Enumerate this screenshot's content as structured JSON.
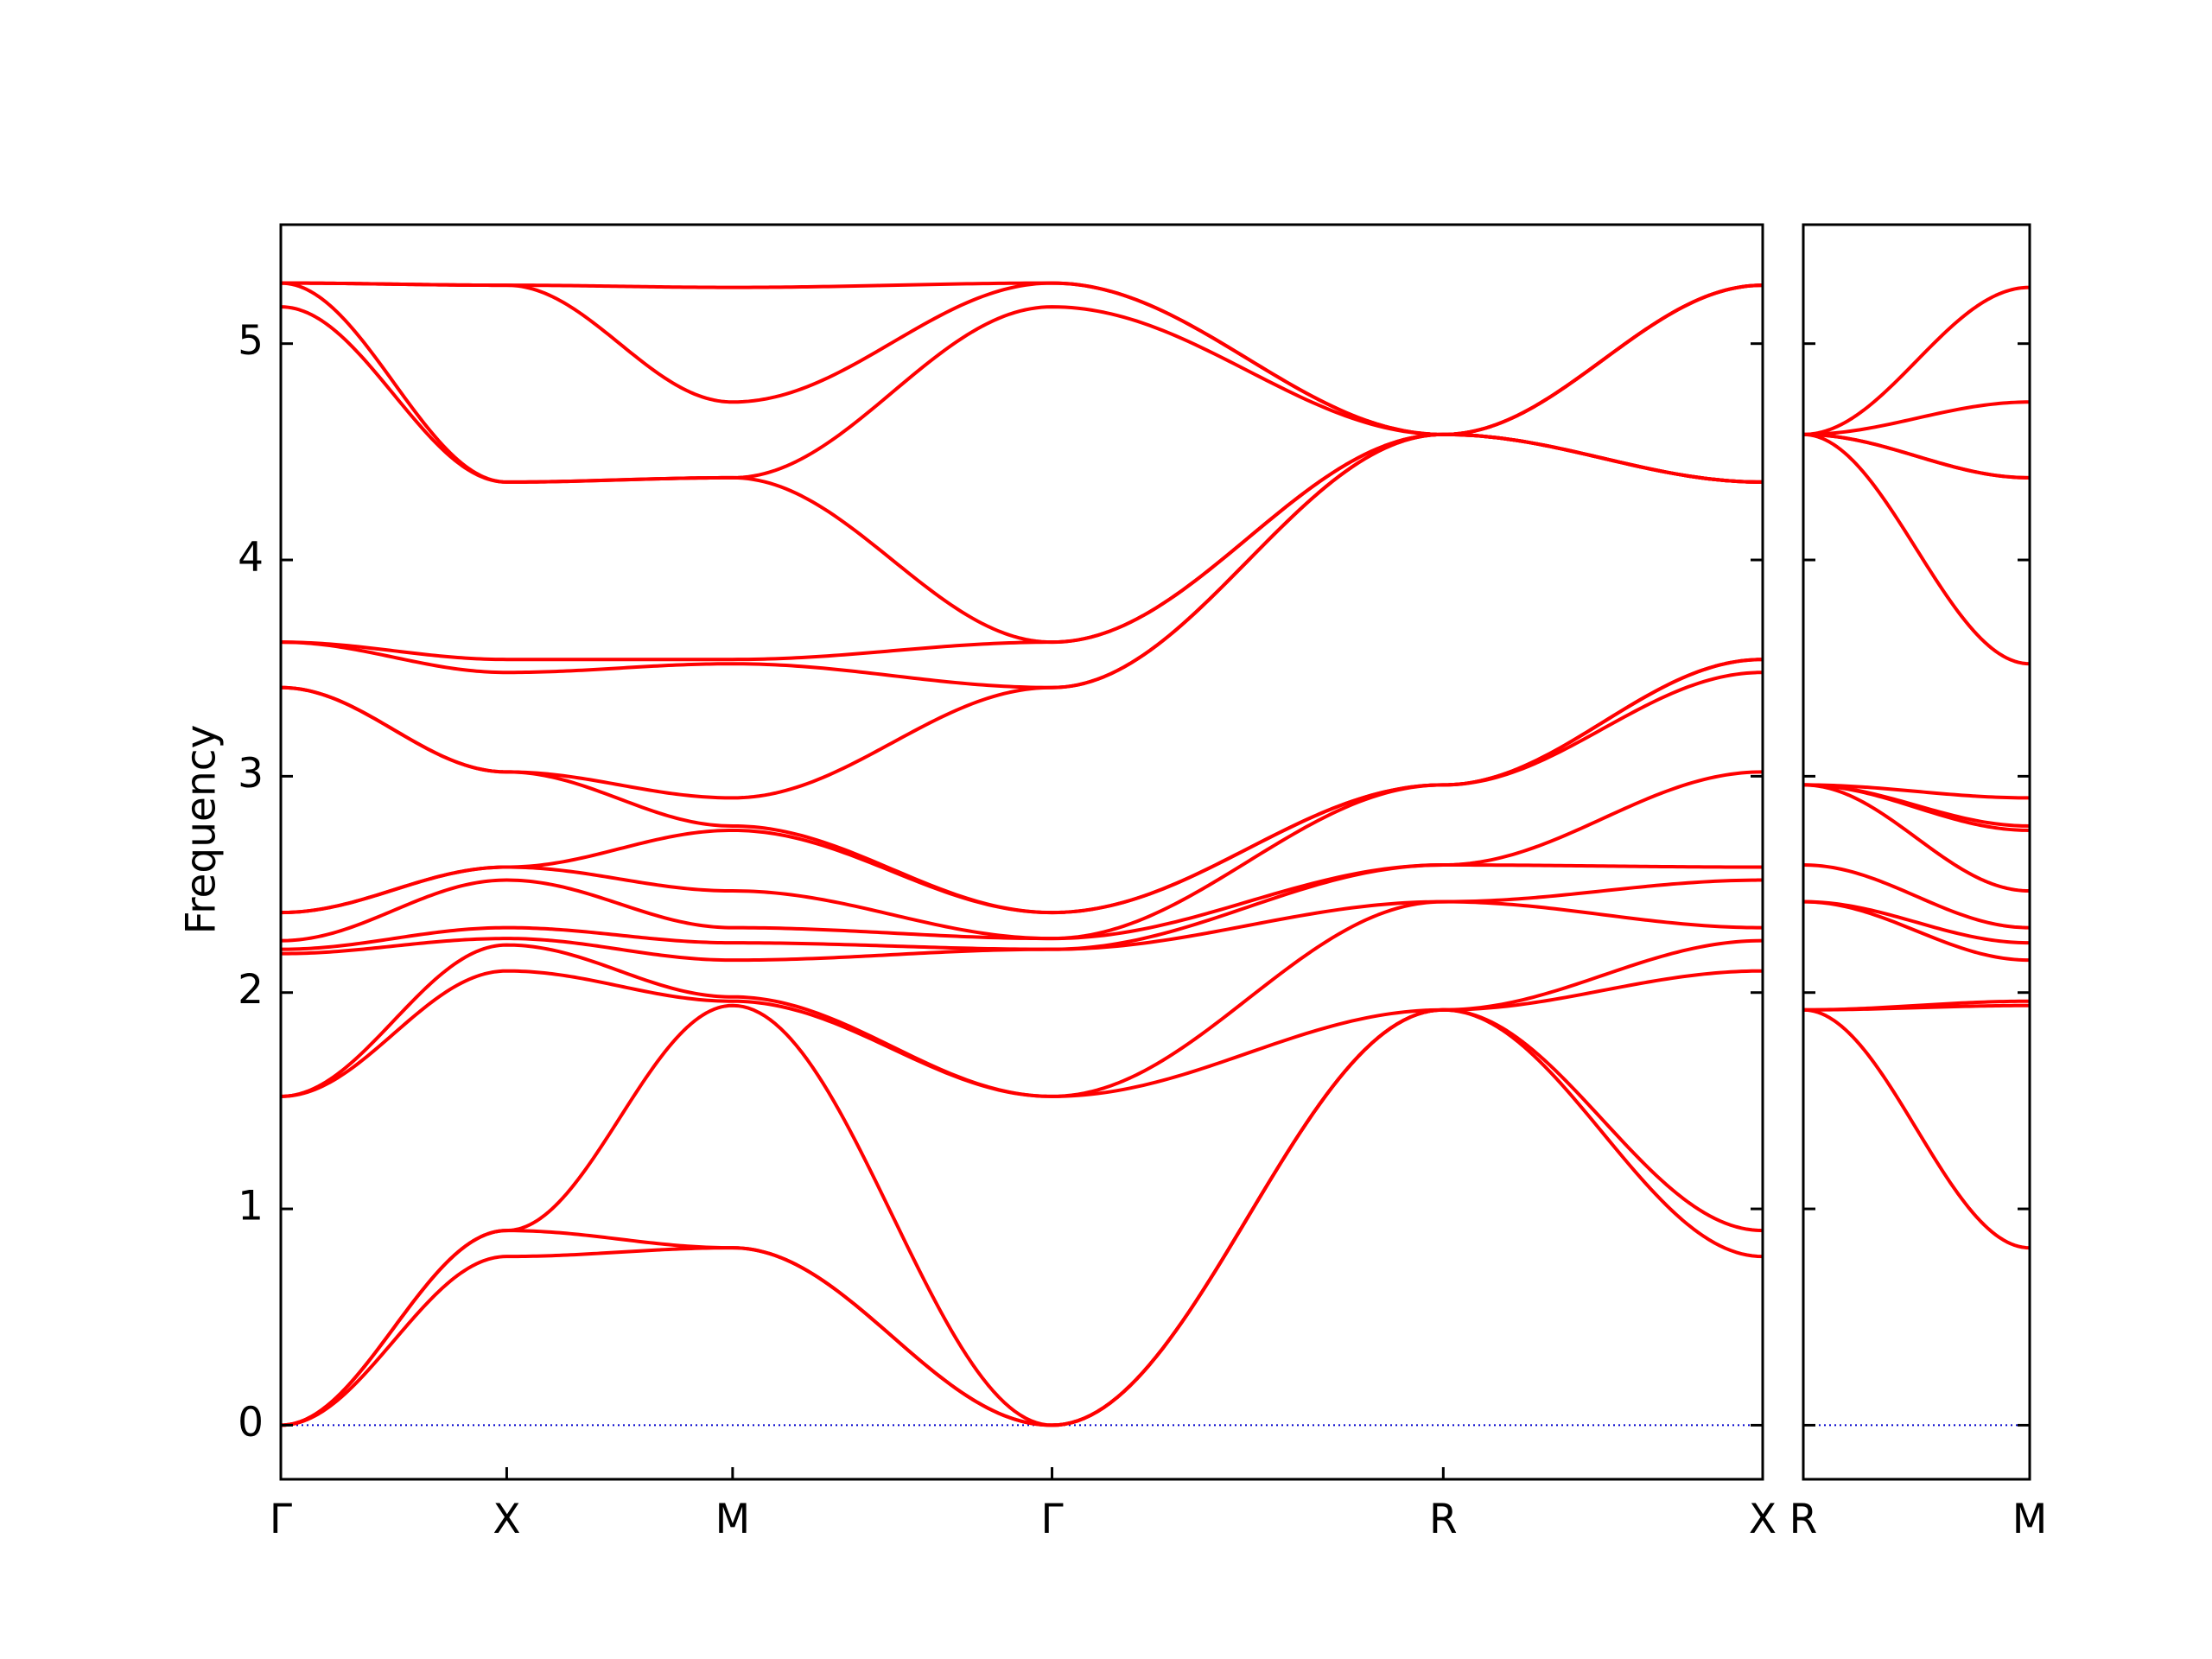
{
  "chart_data": {
    "type": "line",
    "ylabel": "Frequency",
    "ylim": [
      -0.25,
      5.55
    ],
    "y_ticks": [
      0,
      1,
      2,
      3,
      4,
      5
    ],
    "line_color": "#ff0000",
    "zero_line_color": "#0000cc",
    "panels": [
      {
        "segments": [
          {
            "from": "Γ",
            "to": "X",
            "length": 1.0
          },
          {
            "from": "X",
            "to": "M",
            "length": 1.0
          },
          {
            "from": "M",
            "to": "Γ",
            "length": 1.414
          },
          {
            "from": "Γ",
            "to": "R",
            "length": 1.732
          },
          {
            "from": "R",
            "to": "X",
            "length": 1.414
          }
        ],
        "x_tick_labels": [
          "Γ",
          "X",
          "M",
          "Γ",
          "R",
          "X"
        ],
        "bands": [
          [
            0.0,
            0.78,
            0.82,
            0.0,
            1.92,
            0.78
          ],
          [
            0.0,
            0.9,
            0.82,
            0.0,
            1.92,
            0.9
          ],
          [
            0.0,
            0.9,
            1.94,
            0.0,
            1.92,
            2.1
          ],
          [
            1.52,
            2.1,
            1.96,
            1.52,
            1.92,
            2.24
          ],
          [
            1.52,
            2.22,
            1.98,
            1.52,
            2.42,
            2.3
          ],
          [
            2.18,
            2.25,
            2.15,
            2.2,
            2.42,
            2.52
          ],
          [
            2.2,
            2.3,
            2.23,
            2.2,
            2.59,
            2.58
          ],
          [
            2.24,
            2.52,
            2.3,
            2.25,
            2.59,
            3.02
          ],
          [
            2.37,
            2.58,
            2.47,
            2.25,
            2.96,
            3.48
          ],
          [
            2.37,
            2.58,
            2.75,
            2.37,
            2.96,
            3.54
          ],
          [
            3.41,
            3.02,
            2.77,
            2.37,
            2.96,
            3.54
          ],
          [
            3.41,
            3.02,
            2.9,
            3.41,
            4.58,
            4.36
          ],
          [
            3.62,
            3.48,
            3.52,
            3.41,
            4.58,
            4.36
          ],
          [
            3.62,
            3.54,
            3.54,
            3.62,
            4.58,
            4.36
          ],
          [
            5.17,
            4.36,
            4.38,
            3.62,
            4.58,
            4.36
          ],
          [
            5.28,
            4.36,
            4.38,
            5.17,
            4.58,
            5.27
          ],
          [
            5.28,
            5.27,
            4.73,
            5.28,
            4.58,
            5.27
          ],
          [
            5.28,
            5.27,
            5.26,
            5.28,
            4.58,
            5.27
          ]
        ]
      },
      {
        "segments": [
          {
            "from": "R",
            "to": "M",
            "length": 1.0
          }
        ],
        "x_tick_labels": [
          "R",
          "M"
        ],
        "bands": [
          [
            1.92,
            0.82
          ],
          [
            1.92,
            1.94
          ],
          [
            1.92,
            1.96
          ],
          [
            2.42,
            2.15
          ],
          [
            2.42,
            2.23
          ],
          [
            2.59,
            2.3
          ],
          [
            2.96,
            2.47
          ],
          [
            2.96,
            2.75
          ],
          [
            2.96,
            2.77
          ],
          [
            2.96,
            2.9
          ],
          [
            4.58,
            3.52
          ],
          [
            4.58,
            4.38
          ],
          [
            4.58,
            4.38
          ],
          [
            4.58,
            4.73
          ],
          [
            4.58,
            5.26
          ]
        ]
      }
    ]
  }
}
